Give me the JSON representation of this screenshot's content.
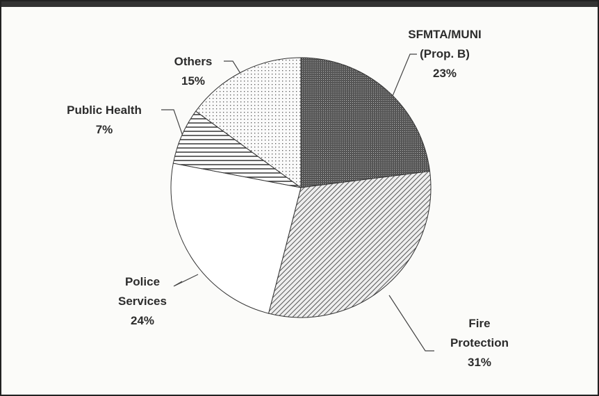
{
  "chart_data": {
    "type": "pie",
    "categories": [
      "SFMTA/MUNI (Prop. B)",
      "Fire Protection",
      "Police Services",
      "Public Health",
      "Others"
    ],
    "values": [
      23,
      31,
      24,
      7,
      15
    ],
    "value_labels": [
      "23%",
      "31%",
      "24%",
      "7%",
      "15%"
    ],
    "start_angle": 90,
    "direction": "clockwise"
  }
}
